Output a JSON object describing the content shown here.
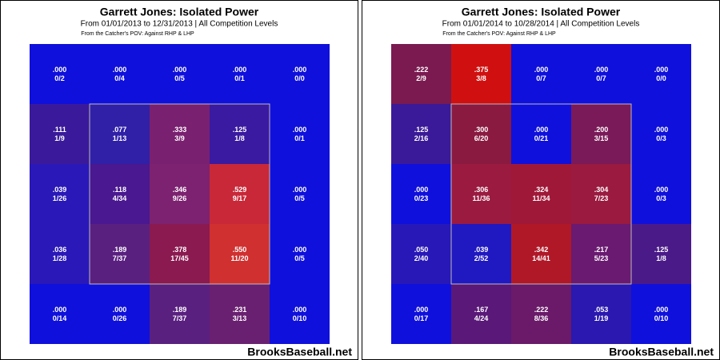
{
  "chart_data": [
    {
      "type": "heatmap",
      "title": "Garrett Jones: Isolated Power",
      "subtitle": "From 01/01/2013 to 12/31/2013 | All Competition Levels",
      "note": "From the Catcher's POV:  Against RHP & LHP",
      "source": "BrooksBaseball.net",
      "values": [
        [
          0,
          0,
          0,
          0,
          0
        ],
        [
          0.111,
          0.077,
          0.333,
          0.125,
          0
        ],
        [
          0.039,
          0.118,
          0.346,
          0.529,
          0
        ],
        [
          0.036,
          0.189,
          0.378,
          0.55,
          0
        ],
        [
          0,
          0,
          0.189,
          0.231,
          0
        ]
      ],
      "value_labels": [
        [
          ".000",
          ".000",
          ".000",
          ".000",
          ".000"
        ],
        [
          ".111",
          ".077",
          ".333",
          ".125",
          ".000"
        ],
        [
          ".039",
          ".118",
          ".346",
          ".529",
          ".000"
        ],
        [
          ".036",
          ".189",
          ".378",
          ".550",
          ".000"
        ],
        [
          ".000",
          ".000",
          ".189",
          ".231",
          ".000"
        ]
      ],
      "ratios": [
        [
          "0/2",
          "0/4",
          "0/5",
          "0/1",
          "0/0"
        ],
        [
          "1/9",
          "1/13",
          "3/9",
          "1/8",
          "0/1"
        ],
        [
          "1/26",
          "4/34",
          "9/26",
          "9/17",
          "0/5"
        ],
        [
          "1/28",
          "7/37",
          "17/45",
          "11/20",
          "0/5"
        ],
        [
          "0/14",
          "0/26",
          "7/37",
          "3/13",
          "0/10"
        ]
      ],
      "colors": [
        [
          "#1010dc",
          "#1010dc",
          "#1010dc",
          "#1010dc",
          "#1010dc"
        ],
        [
          "#3a1a9a",
          "#3020a8",
          "#7a2070",
          "#3a1aa0",
          "#1010dc"
        ],
        [
          "#2a18b8",
          "#4a1890",
          "#7c2270",
          "#c82838",
          "#1010dc"
        ],
        [
          "#2a18b8",
          "#5a2080",
          "#8a1a50",
          "#d03030",
          "#1010dc"
        ],
        [
          "#1010dc",
          "#1010dc",
          "#5a2080",
          "#6a2070",
          "#1010dc"
        ]
      ]
    },
    {
      "type": "heatmap",
      "title": "Garrett Jones: Isolated Power",
      "subtitle": "From 01/01/2014 to 10/28/2014 | All Competition Levels",
      "note": "From the Catcher's POV:  Against RHP & LHP",
      "source": "BrooksBaseball.net",
      "values": [
        [
          0.222,
          0.375,
          0,
          0,
          0
        ],
        [
          0.125,
          0.3,
          0,
          0.2,
          0
        ],
        [
          0,
          0.306,
          0.324,
          0.304,
          0
        ],
        [
          0.05,
          0.039,
          0.342,
          0.217,
          0.125
        ],
        [
          0,
          0.167,
          0.222,
          0.053,
          0
        ]
      ],
      "value_labels": [
        [
          ".222",
          ".375",
          ".000",
          ".000",
          ".000"
        ],
        [
          ".125",
          ".300",
          ".000",
          ".200",
          ".000"
        ],
        [
          ".000",
          ".306",
          ".324",
          ".304",
          ".000"
        ],
        [
          ".050",
          ".039",
          ".342",
          ".217",
          ".125"
        ],
        [
          ".000",
          ".167",
          ".222",
          ".053",
          ".000"
        ]
      ],
      "ratios": [
        [
          "2/9",
          "3/8",
          "0/7",
          "0/7",
          "0/0"
        ],
        [
          "2/16",
          "6/20",
          "0/21",
          "3/15",
          "0/3"
        ],
        [
          "0/23",
          "11/36",
          "11/34",
          "7/23",
          "0/3"
        ],
        [
          "2/40",
          "2/52",
          "14/41",
          "5/23",
          "1/8"
        ],
        [
          "0/17",
          "4/24",
          "8/36",
          "1/19",
          "0/10"
        ]
      ],
      "colors": [
        [
          "#7a1a50",
          "#d01010",
          "#1010dc",
          "#1010dc",
          "#1010dc"
        ],
        [
          "#3a1a98",
          "#8a1a40",
          "#1010dc",
          "#7a1a58",
          "#1010dc"
        ],
        [
          "#1010dc",
          "#9a1a40",
          "#a01838",
          "#9a1a40",
          "#1010dc"
        ],
        [
          "#2818b8",
          "#2018c0",
          "#b01828",
          "#6a1a70",
          "#4a1a88"
        ],
        [
          "#1010dc",
          "#5a1878",
          "#6a1a68",
          "#2a18b0",
          "#1010dc"
        ]
      ]
    }
  ]
}
